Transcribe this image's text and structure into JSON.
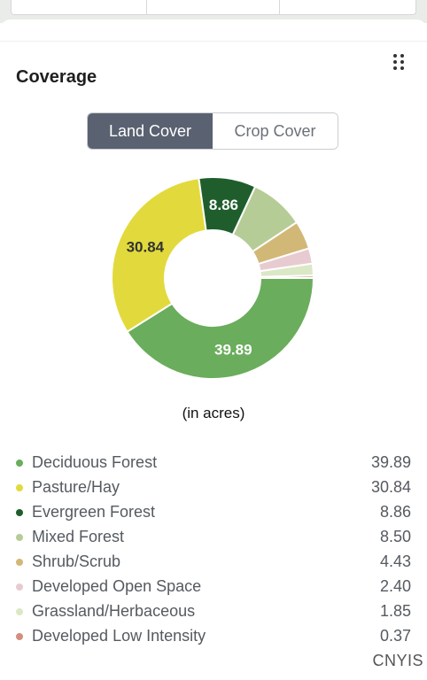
{
  "panel": {
    "title": "Coverage",
    "menu_icon": "drag-dots-icon"
  },
  "toggle": {
    "options": [
      {
        "label": "Land Cover",
        "active": true
      },
      {
        "label": "Crop Cover",
        "active": false
      }
    ]
  },
  "chart_data": {
    "type": "pie",
    "donut": true,
    "unit_label": "(in acres)",
    "categories": [
      "Deciduous Forest",
      "Pasture/Hay",
      "Evergreen Forest",
      "Mixed Forest",
      "Shrub/Scrub",
      "Developed Open Space",
      "Grassland/Herbaceous",
      "Developed Low Intensity"
    ],
    "values": [
      39.89,
      30.84,
      8.86,
      8.5,
      4.43,
      2.4,
      1.85,
      0.37
    ],
    "colors": [
      "#6aad5c",
      "#e2da3c",
      "#1f5e2c",
      "#b6cc96",
      "#d2b877",
      "#e8cbd1",
      "#dbe8c6",
      "#d28e7e"
    ],
    "slice_labels": [
      "39.89",
      "30.84",
      "8.86",
      "",
      "",
      "",
      "",
      ""
    ],
    "legend": "bottom"
  },
  "legend_values": [
    "39.89",
    "30.84",
    "8.86",
    "8.50",
    "4.43",
    "2.40",
    "1.85",
    "0.37"
  ],
  "watermark": "CNYIS"
}
